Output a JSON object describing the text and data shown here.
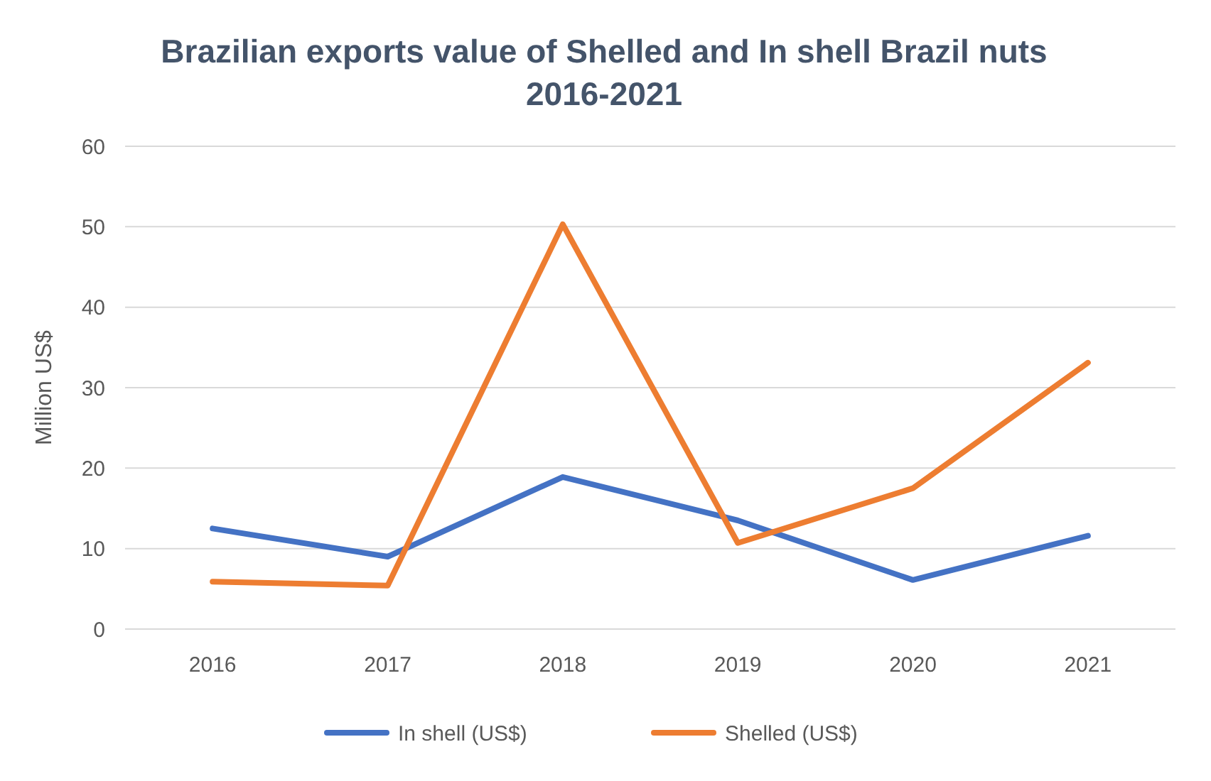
{
  "chart_data": {
    "type": "line",
    "title": "Brazilian exports value of Shelled and In shell Brazil nuts 2016-2021",
    "ylabel": "Million US$",
    "categories": [
      "2016",
      "2017",
      "2018",
      "2019",
      "2020",
      "2021"
    ],
    "series": [
      {
        "name": "In shell (US$)",
        "color": "#4472c4",
        "values": [
          12.5,
          9.0,
          18.9,
          13.5,
          6.1,
          11.6
        ]
      },
      {
        "name": "Shelled (US$)",
        "color": "#ed7d31",
        "values": [
          5.9,
          5.4,
          50.3,
          10.7,
          17.5,
          33.1
        ]
      }
    ],
    "ylim": [
      0,
      60
    ],
    "yticks": [
      0,
      10,
      20,
      30,
      40,
      50,
      60
    ],
    "grid": "y",
    "legend": "bottom",
    "marker": "none",
    "line_style": "solid"
  }
}
